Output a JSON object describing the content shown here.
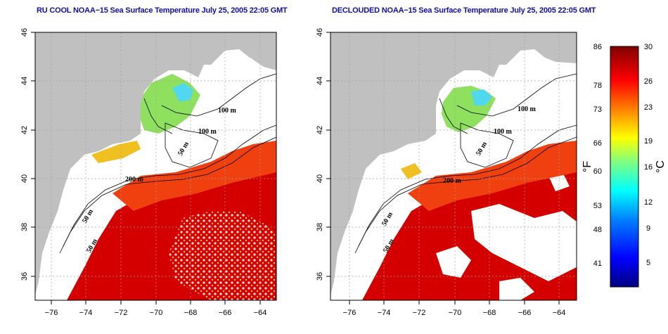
{
  "left_map": {
    "title": "RU COOL NOAA−15 Sea Surface Temperature July 25, 2005 22:05 GMT"
  },
  "right_map": {
    "title": "DECLOUDED NOAA−15 Sea Surface Temperature July 25, 2005 22:05 GMT"
  },
  "axes": {
    "lat_ticks": [
      "46",
      "44",
      "42",
      "40",
      "38",
      "36"
    ],
    "lon_ticks": [
      "−76",
      "−74",
      "−72",
      "−70",
      "−68",
      "−66",
      "−64"
    ]
  },
  "contour_labels": {
    "m100_a": "100 m",
    "m100_b": "100 m",
    "m50_a": "50 m",
    "m200": "200 m",
    "m50_b": "50 m",
    "m50_c": "50 m"
  },
  "colorbar": {
    "fahrenheit_label": "°F",
    "celsius_label": "°C",
    "fahrenheit_ticks": [
      "86",
      "78",
      "73",
      "66",
      "60",
      "53",
      "48",
      "41"
    ],
    "celsius_ticks": [
      "30",
      "26",
      "23",
      "19",
      "16",
      "12",
      "9",
      "5"
    ],
    "colors": [
      "#000080",
      "#0000ff",
      "#0080ff",
      "#00ffff",
      "#80ff80",
      "#ffff00",
      "#ff8000",
      "#ff0000",
      "#800000"
    ]
  },
  "colors": {
    "land": "#c0c0c0",
    "warm_water": "#e02000",
    "hot_water": "#cc0000",
    "cool_water": "#80e060",
    "coldest_water": "#40d0f0",
    "grid": "#a0a0a0"
  }
}
